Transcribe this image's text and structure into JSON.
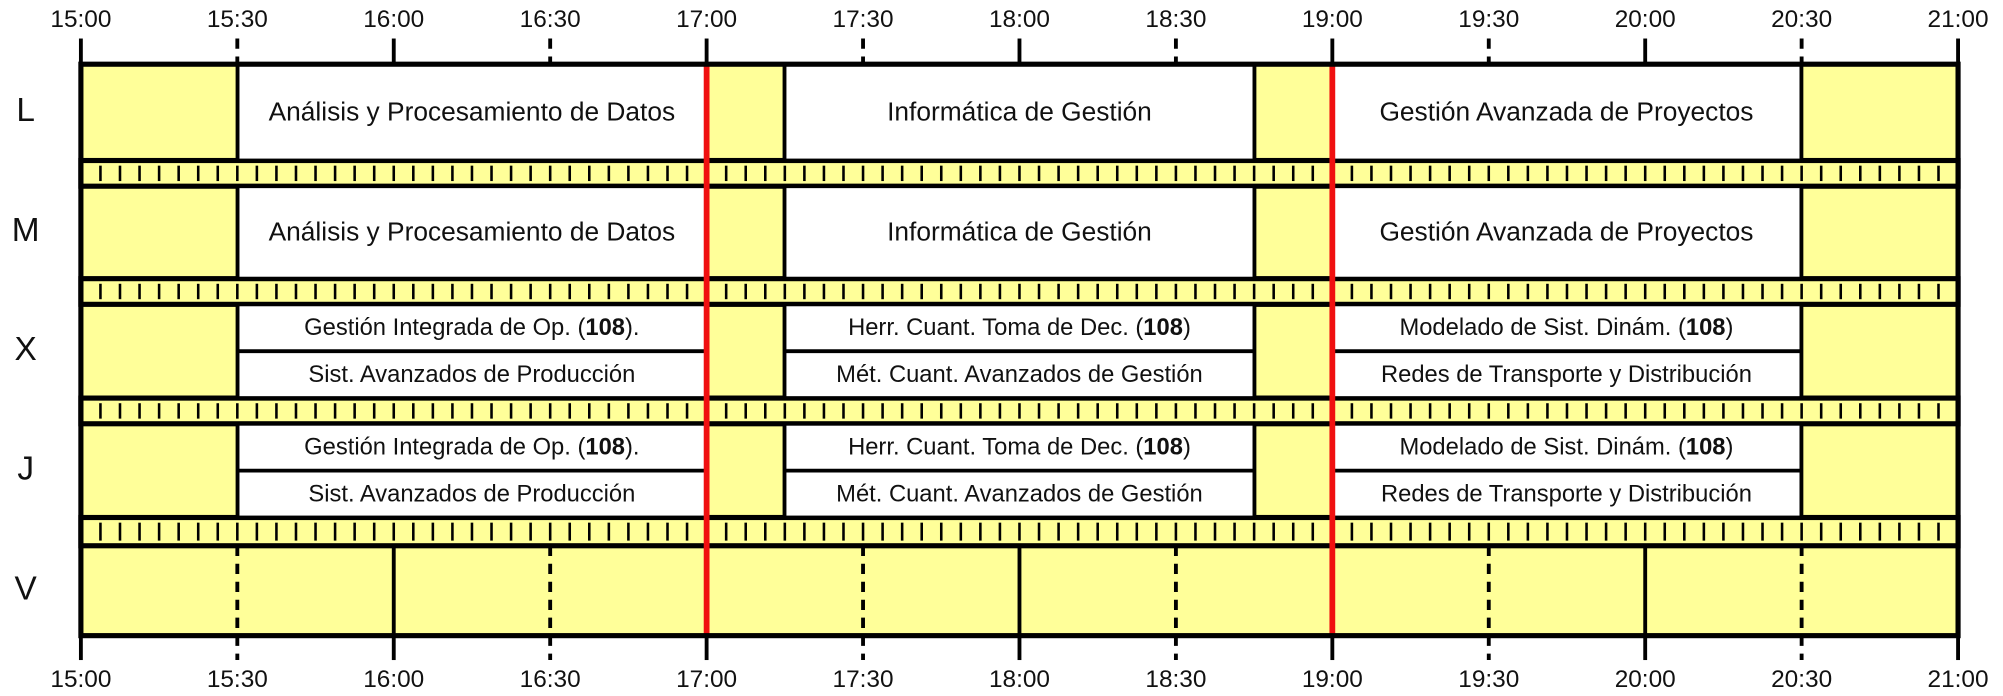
{
  "time_labels": [
    "15:00",
    "15:30",
    "16:00",
    "16:30",
    "17:00",
    "17:30",
    "18:00",
    "18:30",
    "19:00",
    "19:30",
    "20:00",
    "20:30",
    "21:00"
  ],
  "days": [
    {
      "label": "L",
      "slots": [
        [
          {
            "text": "Análisis y Procesamiento de Datos"
          }
        ],
        [
          {
            "text": "Informática de Gestión"
          }
        ],
        [
          {
            "text": "Gestión Avanzada de Proyectos"
          }
        ]
      ]
    },
    {
      "label": "M",
      "slots": [
        [
          {
            "text": "Análisis y Procesamiento de Datos"
          }
        ],
        [
          {
            "text": "Informática de Gestión"
          }
        ],
        [
          {
            "text": "Gestión Avanzada de Proyectos"
          }
        ]
      ]
    },
    {
      "label": "X",
      "slots": [
        [
          {
            "text": "Gestión Integrada de Op. (",
            "bold": "108",
            "after": ")."
          },
          {
            "text": "Sist. Avanzados de Producción"
          }
        ],
        [
          {
            "text": "Herr. Cuant. Toma de Dec. (",
            "bold": "108",
            "after": ")"
          },
          {
            "text": "Mét. Cuant. Avanzados de Gestión"
          }
        ],
        [
          {
            "text": "Modelado de Sist. Dinám. (",
            "bold": "108",
            "after": ")"
          },
          {
            "text": "Redes de Transporte y Distribución"
          }
        ]
      ]
    },
    {
      "label": "J",
      "slots": [
        [
          {
            "text": "Gestión Integrada de Op. (",
            "bold": "108",
            "after": ")."
          },
          {
            "text": "Sist. Avanzados de Producción"
          }
        ],
        [
          {
            "text": "Herr. Cuant. Toma de Dec. (",
            "bold": "108",
            "after": ")"
          },
          {
            "text": "Mét. Cuant. Avanzados de Gestión"
          }
        ],
        [
          {
            "text": "Modelado de Sist. Dinám. (",
            "bold": "108",
            "after": ")"
          },
          {
            "text": "Redes de Transporte y Distribución"
          }
        ]
      ]
    },
    {
      "label": "V",
      "slots": []
    }
  ]
}
